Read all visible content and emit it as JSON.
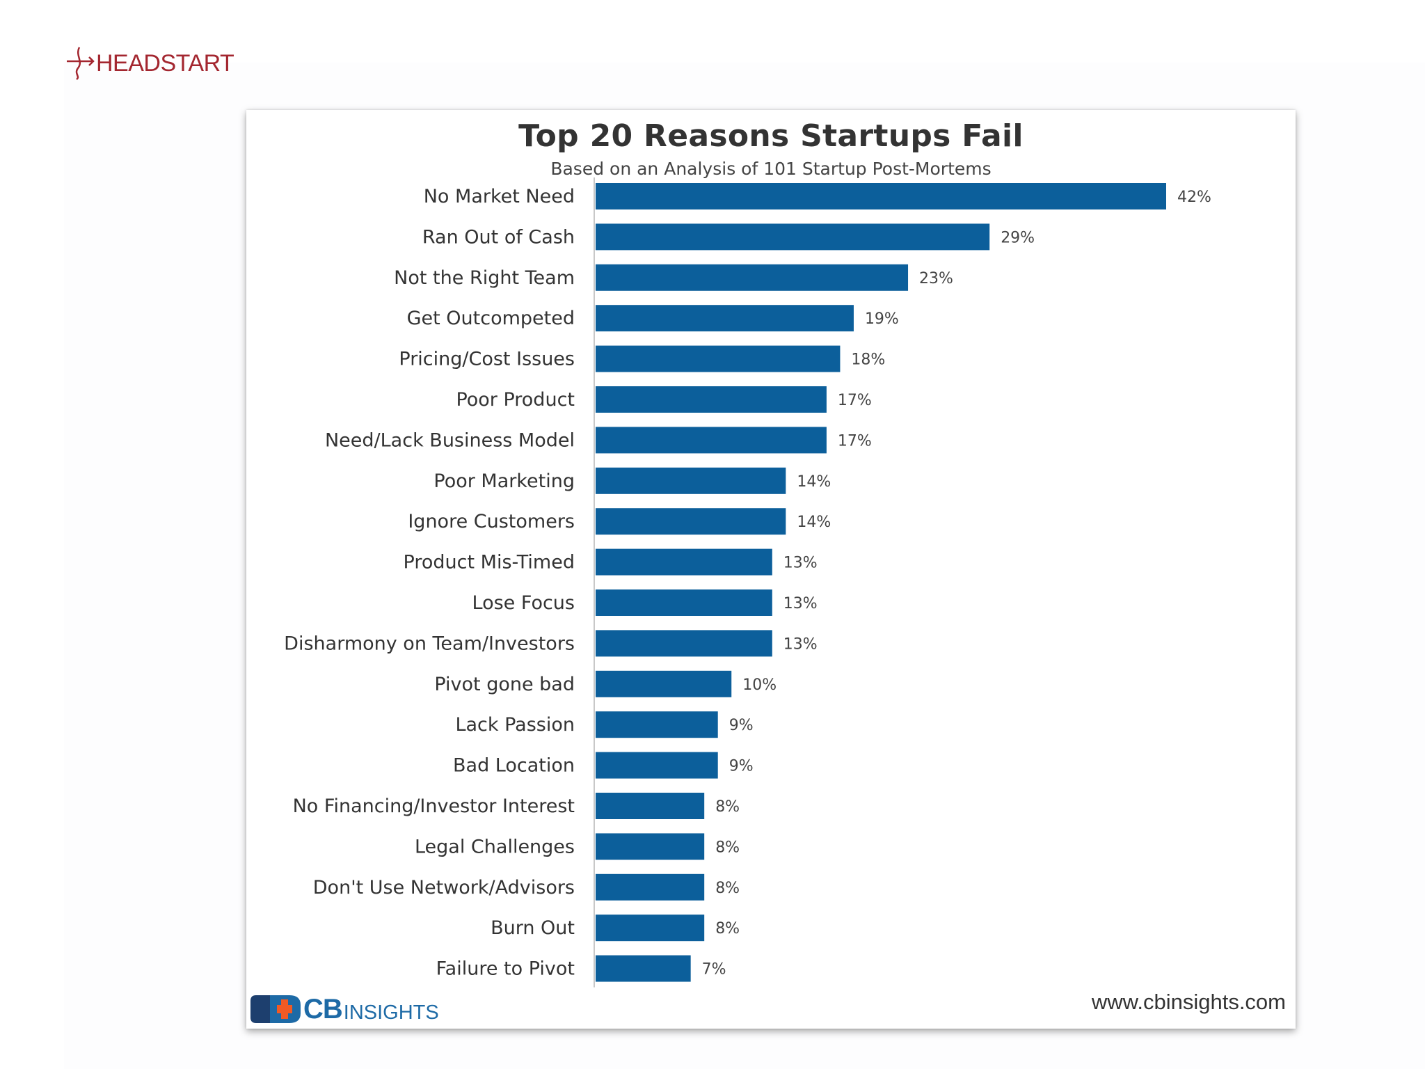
{
  "header": {
    "logo_text": "HEADSTART"
  },
  "colors": {
    "bar": "#0c5f9b",
    "brand": "#a3262f",
    "cb_blue": "#1d6aa6",
    "cb_orange": "#f15a24"
  },
  "chart_data": {
    "type": "bar",
    "orientation": "horizontal",
    "title": "Top 20 Reasons Startups Fail",
    "subtitle": "Based on an Analysis of 101 Startup Post-Mortems",
    "value_suffix": "%",
    "categories": [
      "No Market Need",
      "Ran Out of Cash",
      "Not the Right Team",
      "Get Outcompeted",
      "Pricing/Cost Issues",
      "Poor Product",
      "Need/Lack Business Model",
      "Poor Marketing",
      "Ignore Customers",
      "Product Mis-Timed",
      "Lose Focus",
      "Disharmony on Team/Investors",
      "Pivot gone bad",
      "Lack Passion",
      "Bad Location",
      "No Financing/Investor Interest",
      "Legal Challenges",
      "Don't Use Network/Advisors",
      "Burn Out",
      "Failure to Pivot"
    ],
    "values": [
      42,
      29,
      23,
      19,
      18,
      17,
      17,
      14,
      14,
      13,
      13,
      13,
      10,
      9,
      9,
      8,
      8,
      8,
      8,
      7
    ],
    "xlim": [
      0,
      42
    ],
    "xlabel": "",
    "ylabel": "",
    "grid": false,
    "legend": "none"
  },
  "footer": {
    "brand_bold": "CB",
    "brand_light": "INSIGHTS",
    "source_url": "www.cbinsights.com"
  }
}
